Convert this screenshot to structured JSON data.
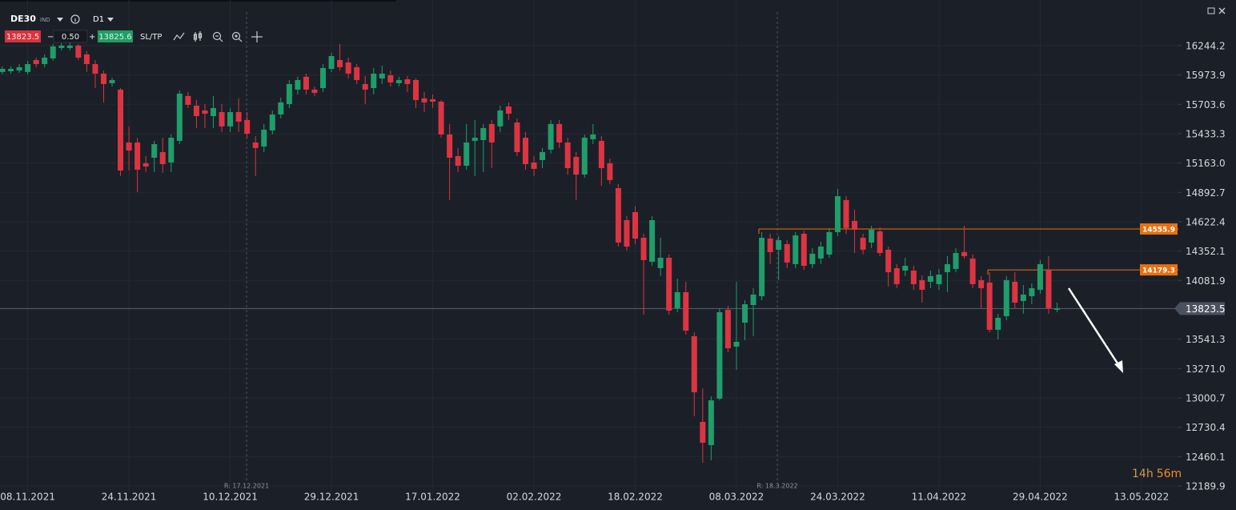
{
  "toolbar": {
    "symbol": "DE30",
    "symbol_type": "IND",
    "timeframe": "D1",
    "bid": "13823.5",
    "minus": "−",
    "spread": "0.50",
    "plus": "+",
    "ask": "13825.6",
    "sltp": "SL/TP"
  },
  "chart_data": {
    "type": "candlestick",
    "up_color": "#1f9d6a",
    "down_color": "#dd3442",
    "grid": true,
    "categories": [
      null,
      null,
      null,
      "08.11.2021",
      null,
      null,
      null,
      null,
      null,
      null,
      null,
      null,
      null,
      null,
      null,
      "24.11.2021",
      null,
      null,
      null,
      null,
      null,
      null,
      null,
      null,
      null,
      null,
      null,
      "10.12.2021",
      null,
      null,
      null,
      null,
      null,
      null,
      null,
      null,
      null,
      null,
      null,
      "29.12.2021",
      null,
      null,
      null,
      null,
      null,
      null,
      null,
      null,
      null,
      null,
      null,
      "17.01.2022",
      null,
      null,
      null,
      null,
      null,
      null,
      null,
      null,
      null,
      null,
      null,
      "02.02.2022",
      null,
      null,
      null,
      null,
      null,
      null,
      null,
      null,
      null,
      null,
      null,
      "18.02.2022",
      null,
      null,
      null,
      null,
      null,
      null,
      null,
      null,
      null,
      null,
      null,
      "08.03.2022",
      null,
      null,
      null,
      null,
      null,
      null,
      null,
      null,
      null,
      null,
      null,
      "24.03.2022",
      null,
      null,
      null,
      null,
      null,
      null,
      null,
      null,
      null,
      null,
      null,
      "11.04.2022",
      null,
      null,
      null,
      null,
      null,
      null,
      null,
      null,
      null,
      null,
      null,
      "29.04.2022",
      null,
      null,
      null,
      null,
      null,
      null,
      null,
      null,
      null,
      null,
      null,
      "13.05.2022"
    ],
    "open": [
      16001,
      16008,
      16015,
      16001,
      16111,
      16074,
      16126,
      16222,
      16222,
      16244,
      16163,
      16074,
      15986,
      15898,
      15839,
      15352,
      15352,
      15161,
      15212,
      15264,
      15168,
      15367,
      15780,
      15691,
      15647,
      15595,
      15632,
      15500,
      15632,
      15559,
      15352,
      15315,
      15463,
      15610,
      15706,
      15839,
      15957,
      15839,
      15853,
      16030,
      16111,
      16089,
      16045,
      15890,
      15853,
      15942,
      15971,
      15898,
      15934,
      15927,
      15758,
      15750,
      15728,
      15426,
      15227,
      15138,
      15367,
      15374,
      15522,
      15500,
      15684,
      15536,
      15396,
      15168,
      15190,
      15286,
      15522,
      15352,
      15219,
      15057,
      15382,
      15367,
      15161,
      14932,
      14637,
      14711,
      14475,
      14254,
      14195,
      14291,
      13827,
      13974,
      13569,
      12780,
      12566,
      12994,
      13812,
      13473,
      13694,
      13856,
      13937,
      14468,
      14365,
      14416,
      14232,
      14512,
      14232,
      14284,
      14321,
      14527,
      14822,
      14630,
      14475,
      14431,
      14534,
      14365,
      14195,
      14173,
      14173,
      14085,
      14070,
      14048,
      14158,
      14188,
      14343,
      14284,
      14085,
      14063,
      13628,
      13753,
      14070,
      13893,
      13937,
      13996,
      14180,
      13812,
      null,
      null,
      null,
      null,
      null,
      null,
      null,
      null,
      null,
      null
    ],
    "high": [
      16052,
      16052,
      16074,
      16104,
      16133,
      16163,
      16259,
      16266,
      16296,
      16259,
      16192,
      16111,
      16015,
      15949,
      15853,
      15500,
      15396,
      15227,
      15367,
      15396,
      15426,
      15831,
      15816,
      15743,
      15706,
      15780,
      15706,
      15669,
      15758,
      15632,
      15411,
      15522,
      15647,
      15765,
      15927,
      15957,
      15986,
      15868,
      16074,
      16178,
      16259,
      16133,
      16074,
      15964,
      16038,
      16060,
      16015,
      15957,
      15964,
      15942,
      15816,
      15794,
      15743,
      15522,
      15301,
      15522,
      15559,
      15522,
      15559,
      15691,
      15721,
      15573,
      15448,
      15227,
      15301,
      15559,
      15559,
      15396,
      15264,
      15426,
      15522,
      15411,
      15205,
      14969,
      14674,
      14763,
      14512,
      14674,
      14475,
      14321,
      14099,
      14070,
      13605,
      13089,
      13016,
      13827,
      13849,
      14070,
      13900,
      14011,
      14527,
      14512,
      14490,
      14453,
      14527,
      14541,
      14379,
      14438,
      14564,
      14925,
      14858,
      14733,
      14512,
      14586,
      14571,
      14394,
      14232,
      14291,
      14217,
      14129,
      14173,
      14188,
      14306,
      14379,
      14586,
      14321,
      14122,
      14158,
      13775,
      14122,
      14158,
      14040,
      14055,
      14269,
      14306,
      13878,
      null,
      null,
      null,
      null,
      null,
      null,
      null,
      null,
      null,
      null
    ],
    "low": [
      15979,
      15986,
      15993,
      15979,
      16045,
      16045,
      16104,
      16200,
      16200,
      16111,
      16001,
      15853,
      15721,
      15868,
      15043,
      15094,
      14895,
      15079,
      15079,
      15072,
      15079,
      15337,
      15669,
      15485,
      15485,
      15485,
      15448,
      15448,
      15448,
      15396,
      15043,
      15264,
      15426,
      15573,
      15669,
      15794,
      15794,
      15780,
      15817,
      16001,
      16015,
      15942,
      15890,
      15706,
      15794,
      15890,
      15868,
      15868,
      15816,
      15669,
      15632,
      15669,
      15396,
      14822,
      15079,
      15102,
      15043,
      15079,
      15116,
      15448,
      15559,
      15227,
      15102,
      15043,
      15116,
      15249,
      15301,
      15057,
      14822,
      15028,
      15337,
      14954,
      14969,
      14394,
      14357,
      14416,
      13768,
      14217,
      14122,
      13768,
      13790,
      13583,
      12832,
      12404,
      12426,
      12979,
      13421,
      13259,
      13532,
      13569,
      13900,
      14232,
      14085,
      14195,
      14195,
      14180,
      14195,
      14232,
      14291,
      14490,
      14512,
      14335,
      14321,
      14379,
      14306,
      14026,
      14011,
      14122,
      13996,
      13878,
      14011,
      13996,
      13974,
      14158,
      14284,
      14011,
      13827,
      13605,
      13539,
      13716,
      13827,
      13775,
      13863,
      13959,
      13775,
      13790,
      null,
      null,
      null,
      null,
      null,
      null,
      null,
      null,
      null,
      null
    ],
    "close": [
      16030,
      16030,
      16045,
      16074,
      16074,
      16133,
      16237,
      16244,
      16244,
      16133,
      16074,
      15986,
      15890,
      15927,
      15094,
      15278,
      15102,
      15131,
      15337,
      15153,
      15396,
      15802,
      15699,
      15595,
      15617,
      15669,
      15500,
      15632,
      15544,
      15433,
      15301,
      15470,
      15610,
      15721,
      15890,
      15927,
      15839,
      15809,
      16038,
      16148,
      16045,
      15986,
      15927,
      15839,
      15986,
      15986,
      15905,
      15927,
      15890,
      15743,
      15721,
      15728,
      15426,
      15212,
      15138,
      15352,
      15396,
      15485,
      15352,
      15647,
      15617,
      15264,
      15153,
      15109,
      15264,
      15522,
      15352,
      15116,
      15057,
      15396,
      15426,
      15116,
      15006,
      14431,
      14394,
      14468,
      14269,
      14637,
      14291,
      13804,
      13974,
      13620,
      13053,
      12588,
      12979,
      13790,
      13458,
      13517,
      13863,
      13952,
      14475,
      14343,
      14453,
      14247,
      14497,
      14217,
      14328,
      14394,
      14527,
      14858,
      14564,
      14549,
      14365,
      14549,
      14335,
      14158,
      14048,
      14217,
      14048,
      13996,
      14122,
      14136,
      14232,
      14335,
      14306,
      14048,
      14011,
      13628,
      13738,
      14085,
      13878,
      13952,
      14011,
      14232,
      13827,
      13823.5,
      null,
      null,
      null,
      null,
      null,
      null,
      null,
      null,
      null,
      null
    ],
    "ylim": [
      12131,
      16627
    ],
    "yticks": [
      16244.2,
      15973.9,
      15703.6,
      15433.3,
      {
        "value": 15163,
        "label": "15163.0"
      },
      14892.7,
      14622.4,
      14352.1,
      14081.9,
      13541.3,
      {
        "value": 13271,
        "label": "13271.0"
      },
      13000.7,
      12730.4,
      12460.1,
      12189.9
    ],
    "current_price": 13823.5,
    "price_lines": [
      {
        "value": 14555.9,
        "color": "#e8700f"
      },
      {
        "value": 14179.3,
        "color": "#e8700f"
      }
    ],
    "markers": [
      {
        "label": "R: 17.12.2021"
      },
      {
        "label": "R: 18.3.2022"
      }
    ],
    "timer": {
      "hours": "14h",
      "minutes": "56m"
    }
  }
}
